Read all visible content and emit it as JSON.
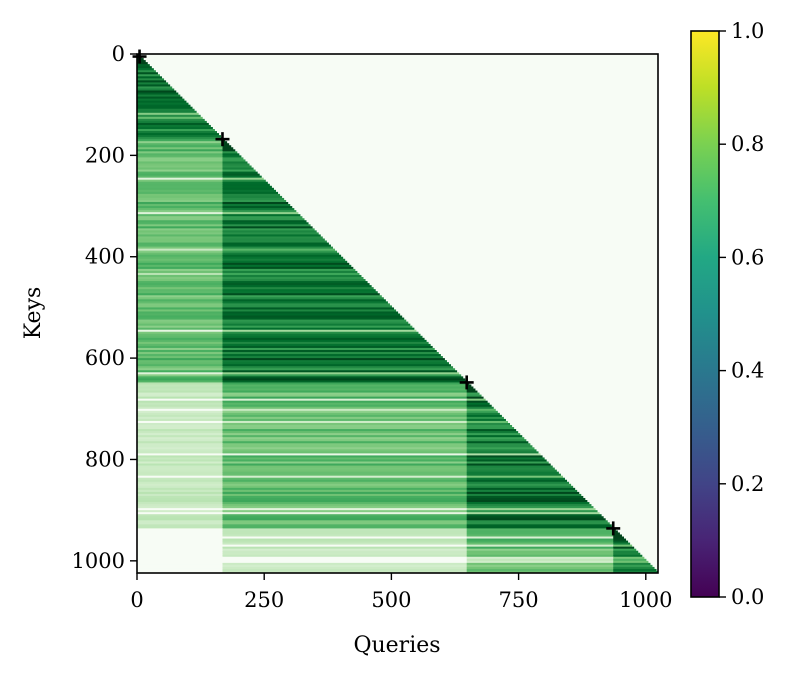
{
  "chart_data": {
    "type": "heatmap",
    "title": "",
    "xlabel": "Queries",
    "ylabel": "Keys",
    "xlim": [
      0,
      1024
    ],
    "ylim": [
      1024,
      0
    ],
    "x_ticks": [
      0,
      250,
      500,
      750,
      1000
    ],
    "y_ticks": [
      0,
      200,
      400,
      600,
      800,
      1000
    ],
    "mask": "causal-lower-triangle",
    "colormap": "Greens",
    "segment_boundaries": [
      0,
      168,
      648,
      936,
      1024
    ],
    "markers": [
      {
        "x": 5,
        "y": 5,
        "symbol": "+"
      },
      {
        "x": 168,
        "y": 168,
        "symbol": "+"
      },
      {
        "x": 648,
        "y": 648,
        "symbol": "+"
      },
      {
        "x": 936,
        "y": 936,
        "symbol": "+"
      }
    ],
    "colorbar": {
      "colormap": "viridis",
      "range": [
        0,
        1
      ],
      "ticks": [
        0.0,
        0.2,
        0.4,
        0.6,
        0.8,
        1.0
      ],
      "tick_labels": [
        "0.0",
        "0.2",
        "0.4",
        "0.6",
        "0.8",
        "1.0"
      ]
    },
    "colors": {
      "background": "#f7fcf5",
      "dark": "#00441b",
      "marker": "#000000"
    }
  }
}
